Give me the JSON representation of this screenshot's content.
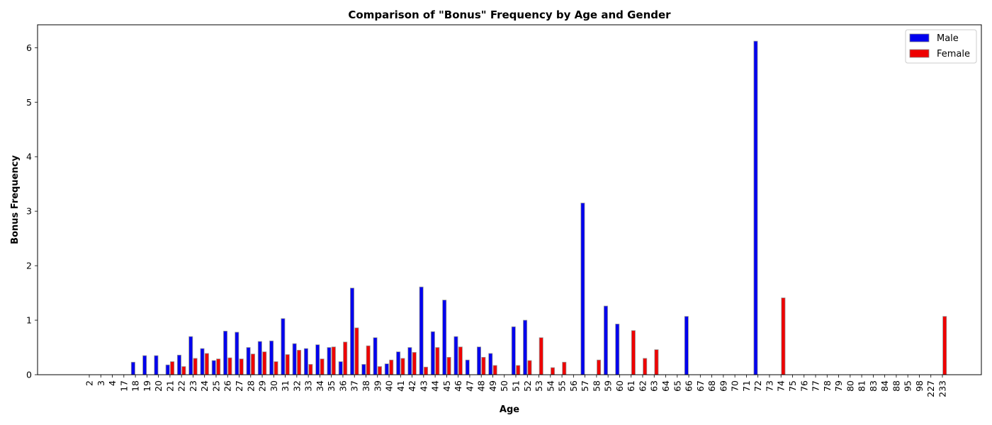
{
  "chart_data": {
    "type": "bar",
    "title": "Comparison of \"Bonus\" Frequency by Age and Gender",
    "xlabel": "Age",
    "ylabel": "Bonus Frequency",
    "ylim": [
      0,
      6.42
    ],
    "yticks": [
      0,
      1,
      2,
      3,
      4,
      5,
      6
    ],
    "grid": false,
    "legend_position": "top-right",
    "categories": [
      "2",
      "3",
      "4",
      "17",
      "18",
      "19",
      "20",
      "21",
      "22",
      "23",
      "24",
      "25",
      "26",
      "27",
      "28",
      "29",
      "30",
      "31",
      "32",
      "33",
      "34",
      "35",
      "36",
      "37",
      "38",
      "39",
      "40",
      "41",
      "42",
      "43",
      "44",
      "45",
      "46",
      "47",
      "48",
      "49",
      "50",
      "51",
      "52",
      "53",
      "54",
      "55",
      "56",
      "57",
      "58",
      "59",
      "60",
      "61",
      "62",
      "63",
      "64",
      "65",
      "66",
      "67",
      "68",
      "69",
      "70",
      "71",
      "72",
      "73",
      "74",
      "75",
      "76",
      "77",
      "78",
      "79",
      "80",
      "81",
      "83",
      "84",
      "88",
      "95",
      "98",
      "227",
      "233"
    ],
    "series": [
      {
        "name": "Male",
        "color": "#0000ee",
        "values": [
          0,
          0,
          0,
          0,
          0.23,
          0.35,
          0.35,
          0.18,
          0.36,
          0.7,
          0.48,
          0.26,
          0.8,
          0.78,
          0.5,
          0.61,
          0.62,
          1.03,
          0.57,
          0.48,
          0.55,
          0.5,
          0.24,
          1.59,
          0.19,
          0.68,
          0.2,
          0.42,
          0.5,
          1.61,
          0.79,
          1.37,
          0.7,
          0.27,
          0.51,
          0.39,
          0,
          0.88,
          1.0,
          0,
          0,
          0,
          0,
          3.15,
          0,
          1.26,
          0.93,
          0,
          0,
          0,
          0,
          0,
          1.07,
          0,
          0,
          0,
          0,
          0,
          6.12,
          0,
          0,
          0,
          0,
          0,
          0,
          0,
          0,
          0,
          0,
          0,
          0,
          0,
          0,
          0,
          0
        ]
      },
      {
        "name": "Female",
        "color": "#ee0000",
        "values": [
          0,
          0,
          0,
          0,
          0,
          0,
          0,
          0.24,
          0.15,
          0.3,
          0.39,
          0.29,
          0.31,
          0.29,
          0.38,
          0.42,
          0.24,
          0.37,
          0.45,
          0.19,
          0.29,
          0.51,
          0.6,
          0.86,
          0.53,
          0.15,
          0.27,
          0.3,
          0.41,
          0.14,
          0.5,
          0.32,
          0.51,
          0,
          0.32,
          0.17,
          0,
          0.17,
          0.26,
          0.68,
          0.13,
          0.23,
          0,
          0,
          0.27,
          0,
          0,
          0.81,
          0.3,
          0.46,
          0,
          0,
          0,
          0,
          0,
          0,
          0,
          0,
          0,
          0,
          1.41,
          0,
          0,
          0,
          0,
          0,
          0,
          0,
          0,
          0,
          0,
          0,
          0,
          0,
          1.07
        ]
      }
    ]
  }
}
